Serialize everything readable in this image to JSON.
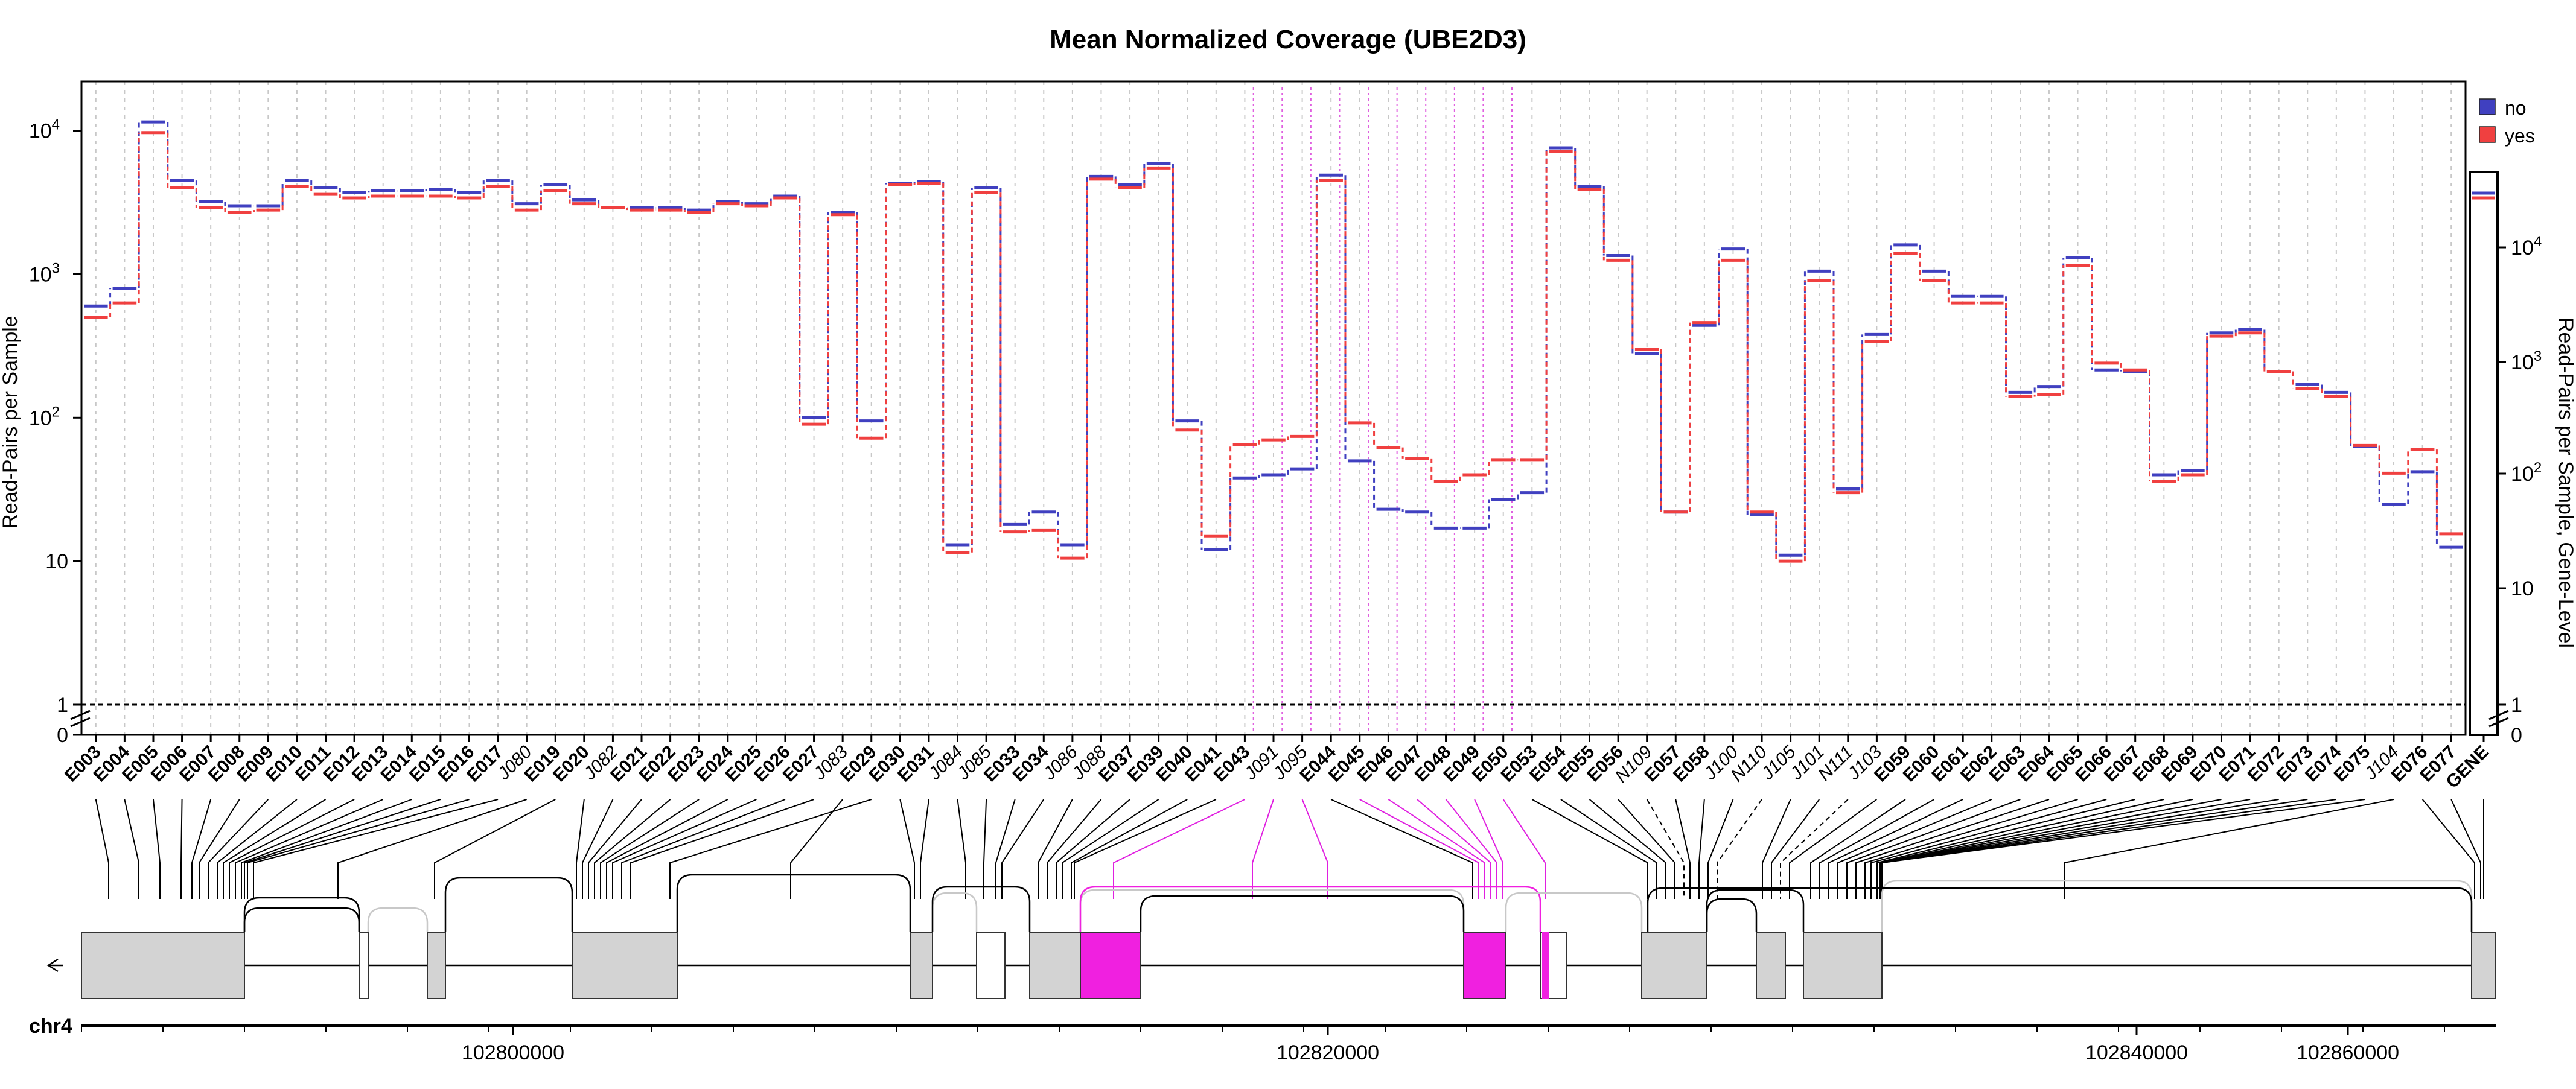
{
  "chart_data": {
    "type": "line",
    "title": "Mean Normalized Coverage (UBE2D3)",
    "ylabel": "Read-Pairs per Sample",
    "ylabel_right": "Read-Pairs per Sample, Gene-Level",
    "yscale": "log",
    "ylim": [
      1,
      20000
    ],
    "yticks": [
      "10^4",
      "10^3",
      "10^2",
      "10",
      "1",
      "0"
    ],
    "yticks_right": [
      "10^4",
      "10^3",
      "10^2",
      "10",
      "1",
      "0"
    ],
    "legend": {
      "position": "top-right"
    },
    "grid": true,
    "reference_line_y": 1,
    "categories": [
      "E003",
      "E004",
      "E005",
      "E006",
      "E007",
      "E008",
      "E009",
      "E010",
      "E011",
      "E012",
      "E013",
      "E014",
      "E015",
      "E016",
      "E017",
      "J080",
      "E019",
      "E020",
      "J082",
      "E021",
      "E022",
      "E023",
      "E024",
      "E025",
      "E026",
      "E027",
      "J083",
      "E029",
      "E030",
      "E031",
      "J084",
      "J085",
      "E033",
      "E034",
      "J086",
      "J088",
      "E037",
      "E039",
      "E040",
      "E041",
      "E043",
      "J091",
      "J095",
      "E044",
      "E045",
      "E046",
      "E047",
      "E048",
      "E049",
      "E050",
      "E053",
      "E054",
      "E055",
      "E056",
      "N109",
      "E057",
      "E058",
      "J100",
      "N110",
      "J105",
      "J101",
      "N111",
      "J103",
      "E059",
      "E060",
      "E061",
      "E062",
      "E063",
      "E064",
      "E065",
      "E066",
      "E067",
      "E068",
      "E069",
      "E070",
      "E071",
      "E072",
      "E073",
      "E074",
      "E075",
      "J104",
      "E076",
      "E077",
      "GENE"
    ],
    "italic_categories": [
      "J080",
      "J082",
      "J083",
      "J084",
      "J085",
      "J086",
      "J088",
      "J091",
      "J095",
      "N109",
      "J100",
      "N110",
      "J105",
      "J101",
      "N111",
      "J103",
      "J104"
    ],
    "series": [
      {
        "name": "no",
        "color": "#4040c0",
        "values": [
          600,
          800,
          11500,
          4500,
          3200,
          3000,
          3000,
          4500,
          4000,
          3700,
          3800,
          3800,
          3900,
          3700,
          4500,
          3100,
          4200,
          3300,
          2900,
          2900,
          2900,
          2800,
          3200,
          3100,
          3500,
          100,
          2700,
          95,
          4300,
          4400,
          13,
          4000,
          18,
          22,
          13,
          4800,
          4200,
          5900,
          95,
          12,
          38,
          40,
          44,
          4900,
          50,
          23,
          22,
          17,
          17,
          27,
          30,
          7600,
          4100,
          1350,
          280,
          22,
          440,
          1500,
          21,
          11,
          1050,
          32,
          380,
          1600,
          1050,
          700,
          700,
          150,
          165,
          1300,
          215,
          210,
          40,
          43,
          390,
          410,
          210,
          170,
          150,
          63,
          25,
          42,
          12.5,
          28000
        ]
      },
      {
        "name": "yes",
        "color": "#f04040",
        "values": [
          500,
          630,
          9700,
          4000,
          2900,
          2700,
          2800,
          4100,
          3600,
          3400,
          3500,
          3500,
          3500,
          3400,
          4100,
          2800,
          3800,
          3100,
          2900,
          2800,
          2800,
          2700,
          3100,
          3000,
          3400,
          90,
          2600,
          72,
          4200,
          4300,
          11.5,
          3700,
          16,
          16.5,
          10.5,
          4600,
          4000,
          5500,
          82,
          15,
          65,
          70,
          74,
          4500,
          92,
          62,
          52,
          36,
          40,
          51,
          51,
          7200,
          3900,
          1250,
          300,
          22,
          460,
          1250,
          22,
          10,
          900,
          30,
          340,
          1400,
          900,
          630,
          630,
          140,
          145,
          1150,
          240,
          215,
          36,
          40,
          370,
          390,
          210,
          160,
          140,
          64,
          41,
          60,
          15.5,
          26000
        ]
      }
    ],
    "track": {
      "chromosome": "chr4",
      "xticks": [
        "102800000",
        "102820000",
        "102840000",
        "102860000"
      ]
    }
  }
}
